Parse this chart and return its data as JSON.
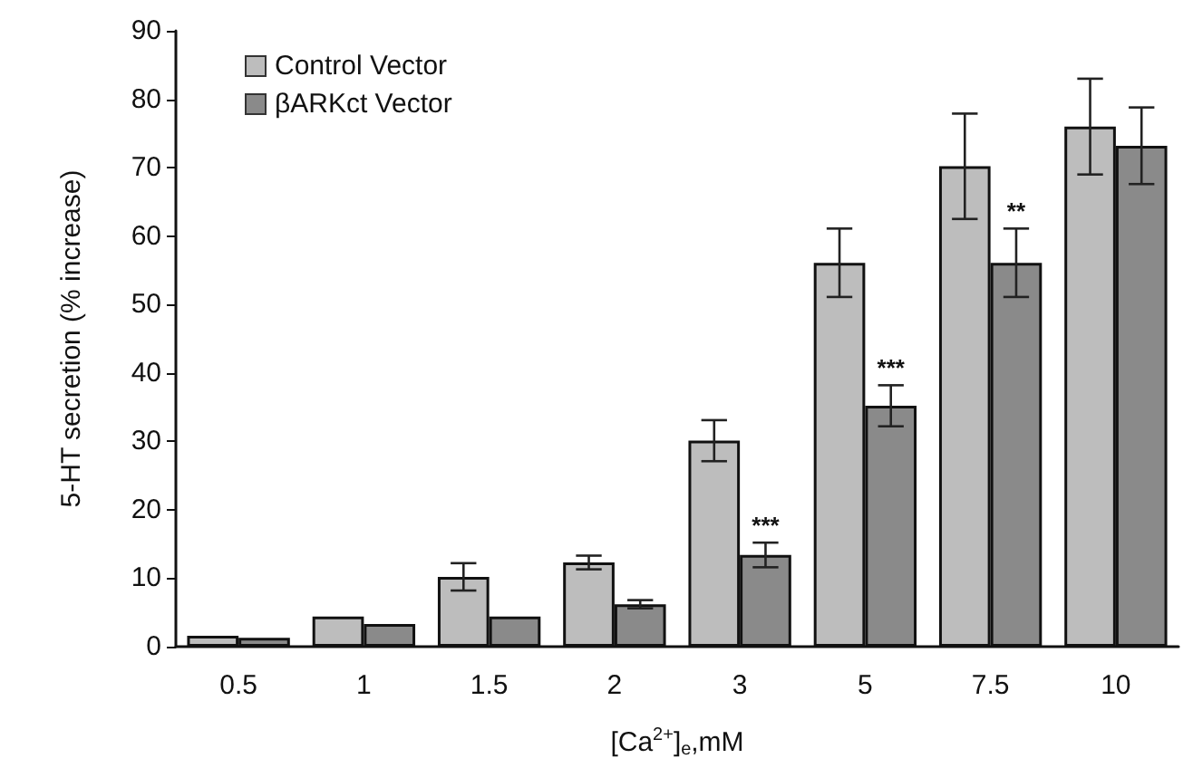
{
  "chart_data": {
    "type": "bar",
    "xlabel": "[Ca$^{2+}$]$_{e}$,mM",
    "ylabel": "5-HT secretion (% increase)",
    "categories": [
      "0.5",
      "1",
      "1.5",
      "2",
      "3",
      "5",
      "7.5",
      "10"
    ],
    "series": [
      {
        "name": "Control Vector",
        "color": "#bdbdbd",
        "values": [
          1.6,
          4.4,
          10.2,
          12.3,
          30.1,
          56.1,
          70.2,
          76
        ],
        "errors": [
          null,
          null,
          2,
          1,
          3,
          5,
          7.7,
          7
        ]
      },
      {
        "name": "βARKct Vector",
        "color": "#8a8a8a",
        "values": [
          1.3,
          3.3,
          4.4,
          6.2,
          13.4,
          35.2,
          56.1,
          73.2
        ],
        "errors": [
          null,
          null,
          null,
          0.6,
          1.8,
          3,
          5,
          5.6
        ]
      }
    ],
    "ylim": [
      0,
      90
    ],
    "yticks": [
      0,
      10,
      20,
      30,
      40,
      50,
      60,
      70,
      80,
      90
    ],
    "annotations": [
      {
        "text": "***",
        "x": "3",
        "y": 15.2
      },
      {
        "text": "***",
        "x": "5",
        "y": 38.2
      },
      {
        "text": "**",
        "x": "7.5",
        "y": 61.1
      }
    ],
    "legend": "top left",
    "grid": false
  }
}
